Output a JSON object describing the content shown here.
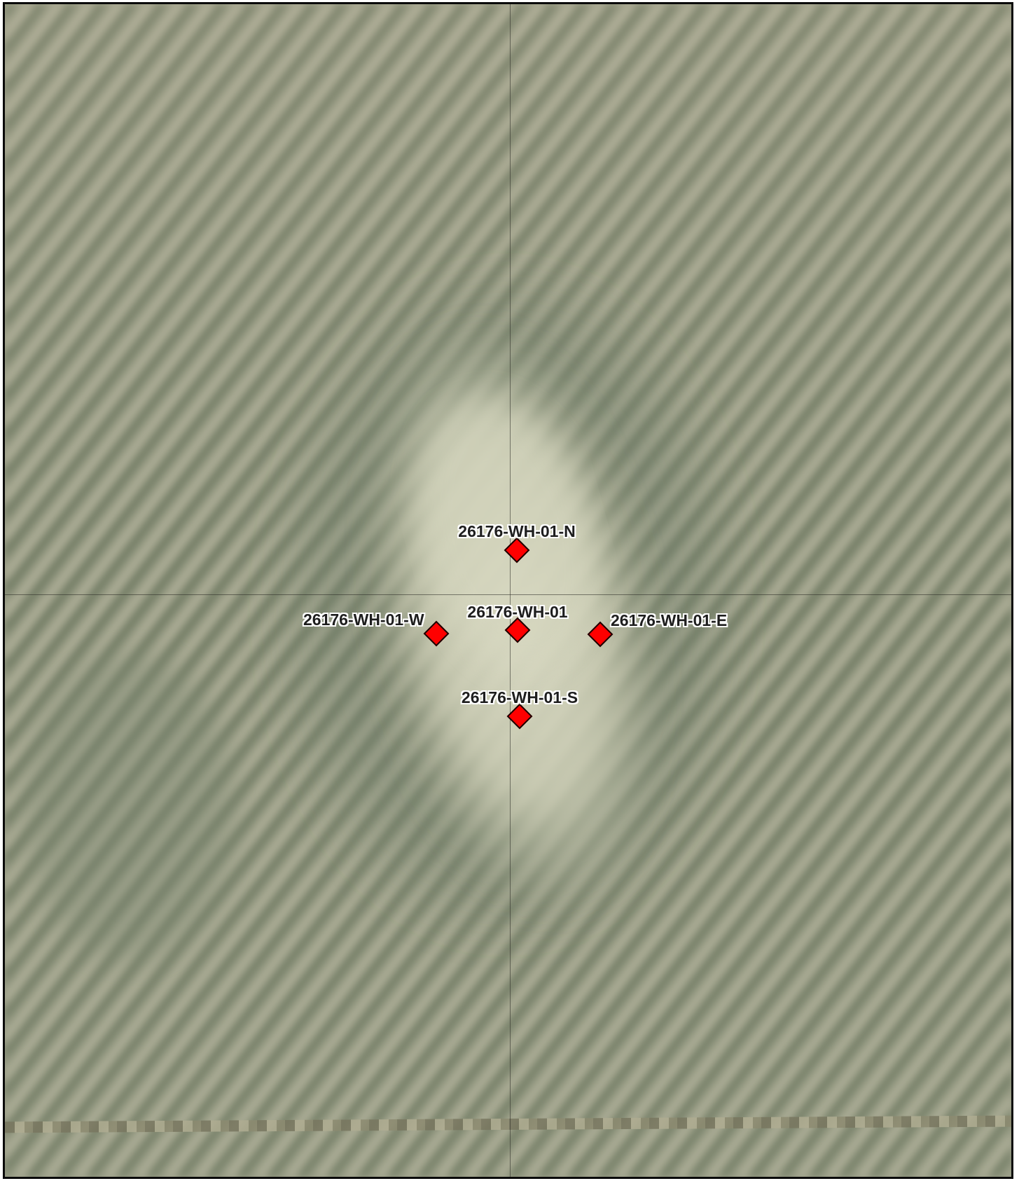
{
  "map": {
    "imagery_colors": {
      "base": "#9a9c86",
      "field_stripe_dark": "#707b63",
      "field_stripe_light": "#b4b49c",
      "pad_center": "#d8d9c2",
      "grid_line": "#28281f"
    },
    "wells": [
      {
        "id": "n",
        "label": "26176-WH-01-N",
        "marker_color": "#ff0000"
      },
      {
        "id": "w",
        "label": "26176-WH-01-W",
        "marker_color": "#ff0000"
      },
      {
        "id": "center",
        "label": "26176-WH-01",
        "marker_color": "#ff0000"
      },
      {
        "id": "e",
        "label": "26176-WH-01-E",
        "marker_color": "#ff0000"
      },
      {
        "id": "s",
        "label": "26176-WH-01-S",
        "marker_color": "#ff0000"
      }
    ]
  }
}
